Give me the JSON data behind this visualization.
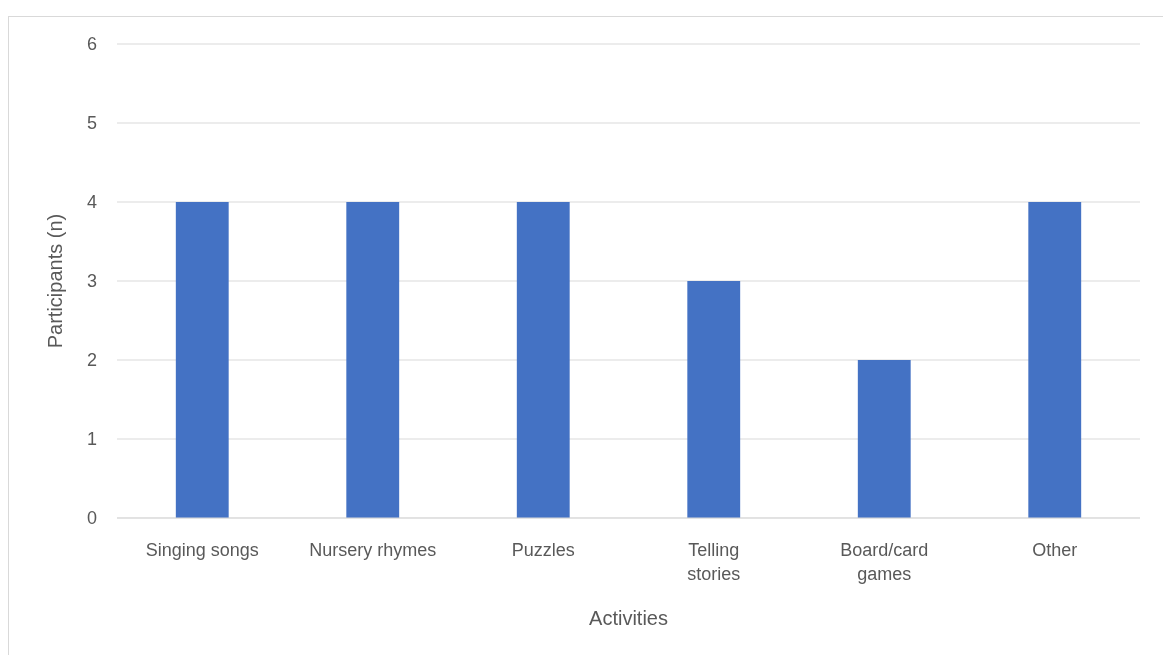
{
  "chart_data": {
    "type": "bar",
    "xlabel": "Activities",
    "ylabel": "Participants (n)",
    "categories": [
      "Singing songs",
      "Nursery rhymes",
      "Puzzles",
      "Telling stories",
      "Board/card games",
      "Other"
    ],
    "values": [
      4,
      4,
      4,
      3,
      2,
      4
    ],
    "color": "#4472c4",
    "ylim": [
      0,
      6
    ],
    "yticks": [
      0,
      1,
      2,
      3,
      4,
      5,
      6
    ],
    "grid": "y"
  }
}
